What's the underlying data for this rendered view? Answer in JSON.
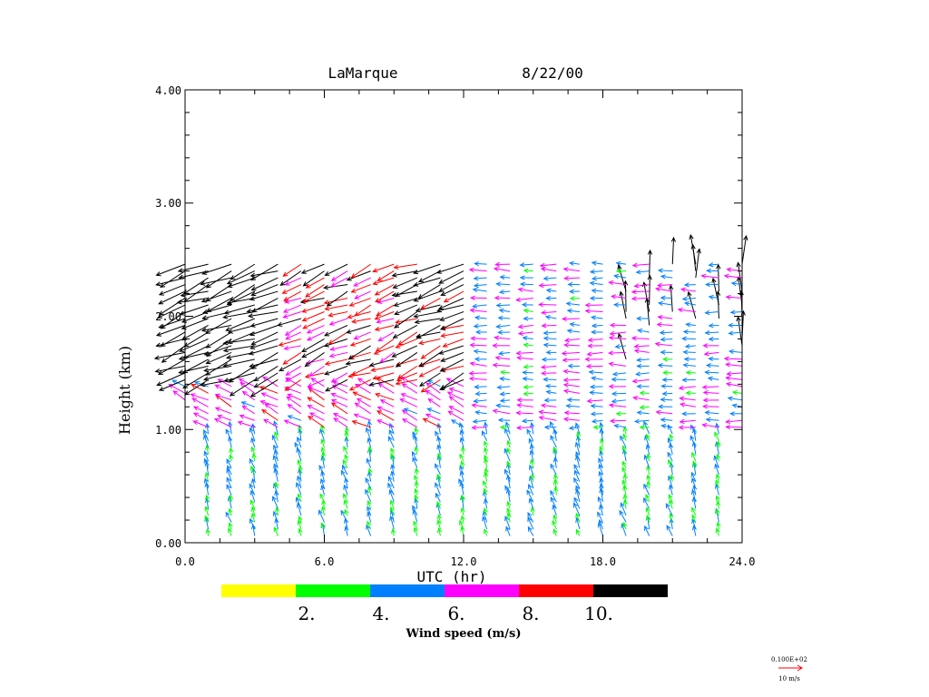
{
  "chart_data": {
    "type": "wind-profiler-time-height",
    "title_site": "LaMarque",
    "title_date": "8/22/00",
    "xlabel": "UTC (hr)",
    "ylabel": "Height (km)",
    "xlim": [
      0,
      24
    ],
    "ylim": [
      0,
      4
    ],
    "xticks": [
      "0.0",
      "6.0",
      "12.0",
      "18.0",
      "24.0"
    ],
    "yticks": [
      "0.00",
      "1.00",
      "2.00",
      "3.00",
      "4.00"
    ],
    "colorbar": {
      "title": "Wind speed (m/s)",
      "bins": [
        {
          "range": "0-2",
          "color": "#ffff00"
        },
        {
          "range": "2-4",
          "color": "#00ff00"
        },
        {
          "range": "4-6",
          "color": "#0080ff"
        },
        {
          "range": "6-8",
          "color": "#ff00ff"
        },
        {
          "range": "8-10",
          "color": "#ff0000"
        },
        {
          "range": ">10",
          "color": "#000000"
        }
      ],
      "labels": [
        "2.",
        "4.",
        "6.",
        "8.",
        "10."
      ]
    },
    "reference_vector": {
      "value_label": "0.100E+02",
      "units_label": "10 m/s",
      "speed": 10,
      "color": "#ff0000"
    },
    "profile_times_hr": [
      0.0,
      1.0,
      2.0,
      3.0,
      4.0,
      5.0,
      6.0,
      7.0,
      8.0,
      9.0,
      10.0,
      11.0,
      12.0,
      13.0,
      14.0,
      15.0,
      16.0,
      17.0,
      18.0,
      19.0,
      20.0,
      21.0,
      22.0,
      23.0,
      24.0
    ],
    "gate_spacing_km": 0.06,
    "first_gate_km": 0.06,
    "top_gate_km": 2.46,
    "wind_regimes": [
      {
        "layer_km": [
          0.0,
          1.0
        ],
        "direction_from_deg": 160,
        "speed_ms": 5.0,
        "note": "southeasterly 4-6 m/s, mixed green/yellow"
      },
      {
        "layer_km": [
          1.0,
          1.4
        ],
        "direction_from_deg": 120,
        "speed_ms": 7.0,
        "note": "easterly 6-8 m/s before 12 UTC"
      },
      {
        "layer_km": [
          1.4,
          2.5
        ],
        "direction_from_deg": 70,
        "speed_ms": 11.0,
        "note": "northeasterly >10 m/s early, weakening later"
      },
      {
        "layer_km": [
          1.0,
          2.5
        ],
        "direction_from_deg": 95,
        "speed_ms": 6.5,
        "note": "easterly 6-8 m/s after 15 UTC"
      }
    ]
  }
}
